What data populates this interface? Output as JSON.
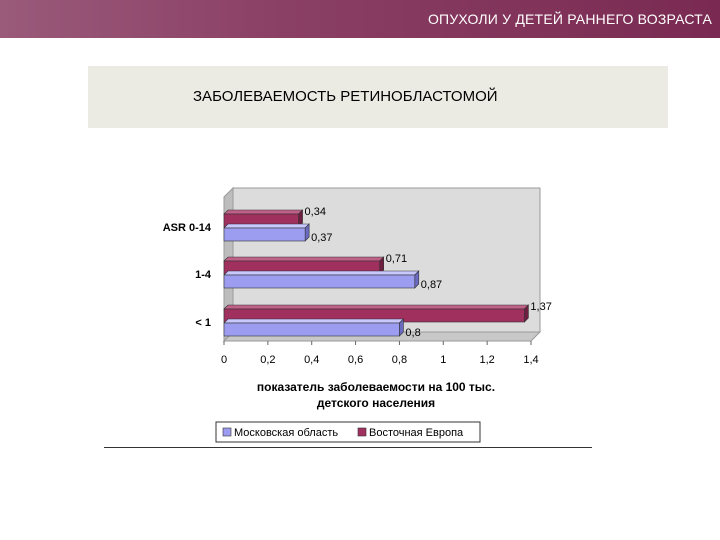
{
  "header": {
    "title": "ОПУХОЛИ У ДЕТЕЙ РАННЕГО ВОЗРАСТА"
  },
  "subtitle": "ЗАБОЛЕВАЕМОСТЬ РЕТИНОБЛАСТОМОЙ",
  "colors": {
    "header_accent": "#8a3f64",
    "series_moscow": "#9c9cf0",
    "series_europe": "#a0305e"
  },
  "chart_data": {
    "type": "bar",
    "orientation": "horizontal",
    "categories": [
      "ASR 0-14",
      "1-4",
      "< 1"
    ],
    "series": [
      {
        "name": "Восточная Европа",
        "values": [
          0.34,
          0.71,
          1.37
        ],
        "value_labels": [
          "0,34",
          "0,71",
          "1,37"
        ]
      },
      {
        "name": "Московская область",
        "values": [
          0.37,
          0.87,
          0.8
        ],
        "value_labels": [
          "0,37",
          "0,87",
          "0,8"
        ]
      }
    ],
    "xlabel_lines": [
      "показатель заболеваемости на 100 тыс.",
      "детского населения"
    ],
    "xlim": [
      0,
      1.4
    ],
    "xticks": [
      0,
      0.2,
      0.4,
      0.6,
      0.8,
      1,
      1.2,
      1.4
    ],
    "xtick_labels": [
      "0",
      "0,2",
      "0,4",
      "0,6",
      "0,8",
      "1",
      "1,2",
      "1,4"
    ],
    "legend": {
      "placement": "bottom",
      "entries": [
        "Московская область",
        "Восточная Европа"
      ]
    },
    "style": "3d-bar",
    "grid": false
  }
}
